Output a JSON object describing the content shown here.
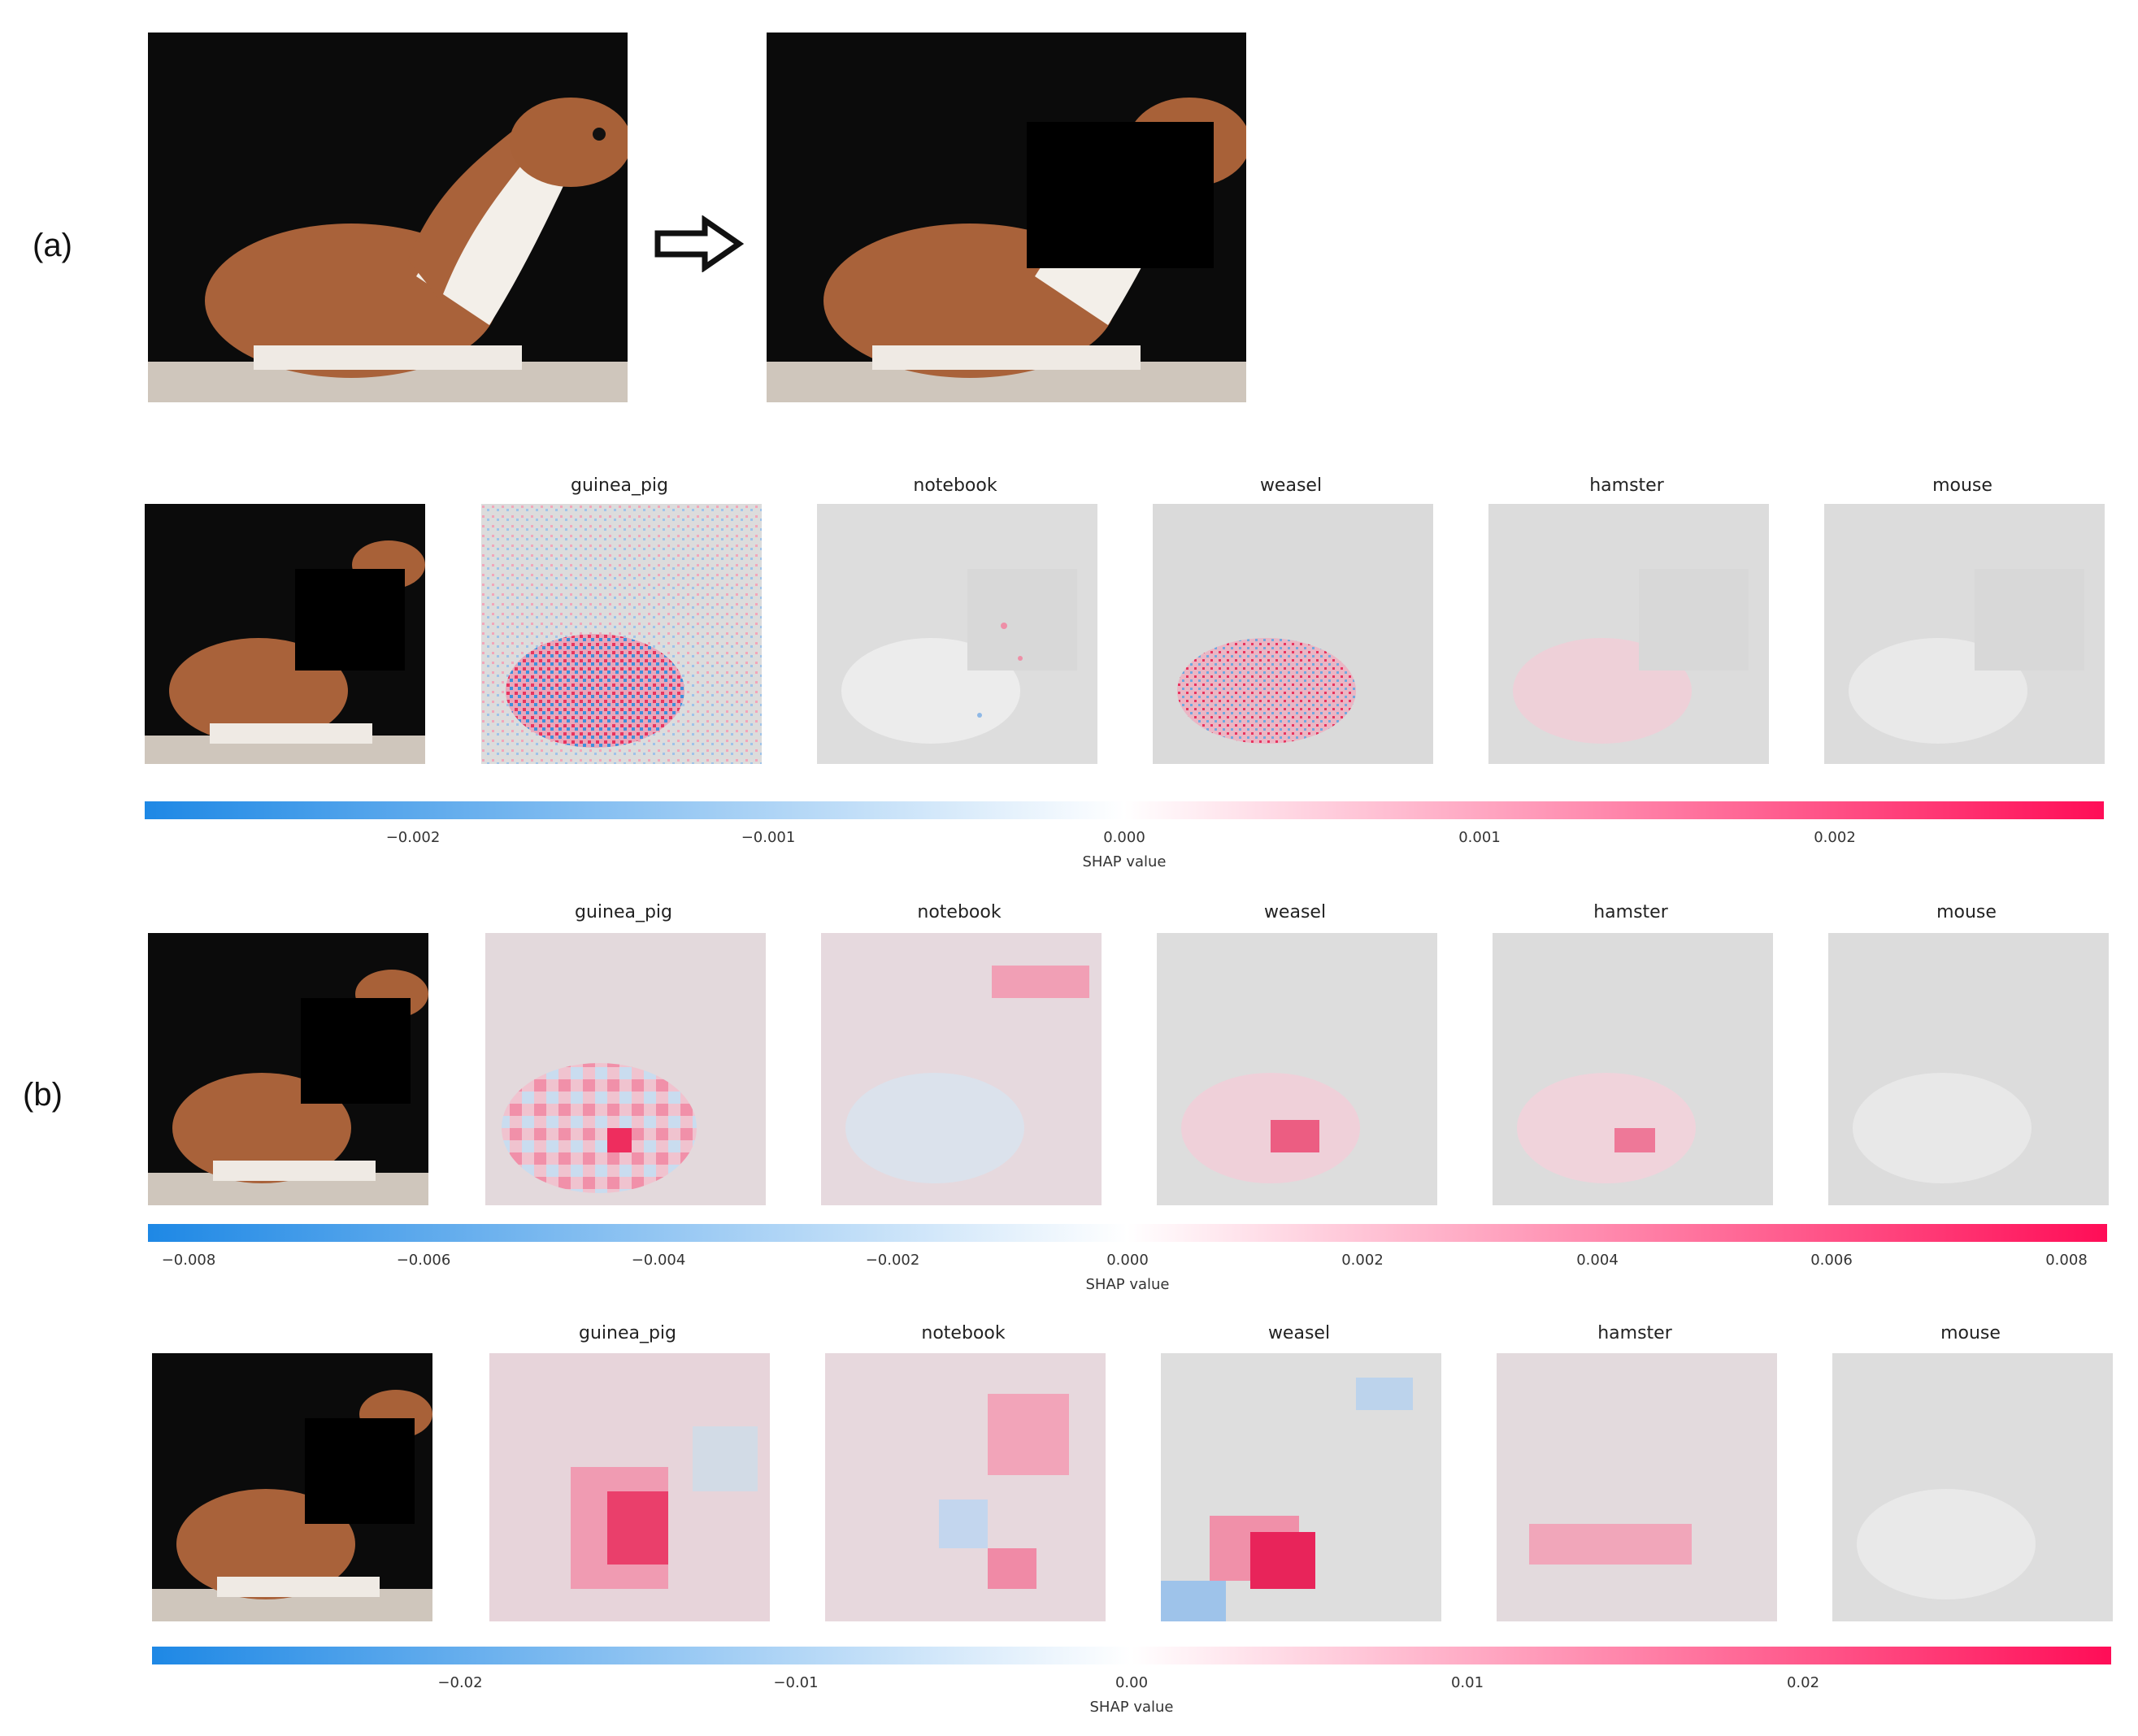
{
  "part_labels": {
    "a": "(a)",
    "b": "(b)"
  },
  "rows": [
    {
      "class_titles": [
        "guinea_pig",
        "notebook",
        "weasel",
        "hamster",
        "mouse"
      ],
      "colorbar": {
        "label": "SHAP value",
        "ticks": [
          "−0.002",
          "−0.001",
          "0.000",
          "0.001",
          "0.002"
        ],
        "min_color": "#1e88e5",
        "mid_color": "#ffffff",
        "max_color": "#ff0d57"
      }
    },
    {
      "class_titles": [
        "guinea_pig",
        "notebook",
        "weasel",
        "hamster",
        "mouse"
      ],
      "colorbar": {
        "label": "SHAP value",
        "ticks": [
          "−0.008",
          "−0.006",
          "−0.004",
          "−0.002",
          "0.000",
          "0.002",
          "0.004",
          "0.006",
          "0.008"
        ]
      }
    },
    {
      "class_titles": [
        "guinea_pig",
        "notebook",
        "weasel",
        "hamster",
        "mouse"
      ],
      "colorbar": {
        "label": "SHAP value",
        "ticks": [
          "−0.02",
          "−0.01",
          "0.00",
          "0.01",
          "0.02"
        ]
      }
    }
  ]
}
